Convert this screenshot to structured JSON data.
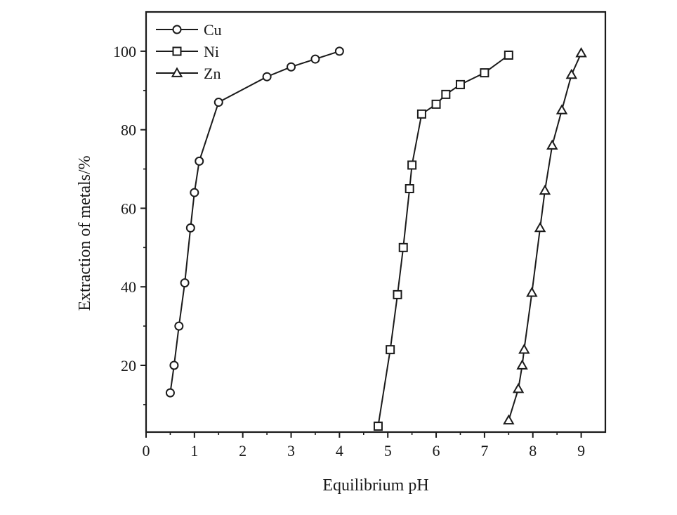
{
  "chart_data": {
    "type": "line",
    "xlabel": "Equilibrium pH",
    "ylabel": "Extraction of metals/%",
    "xlim": [
      0,
      9.5
    ],
    "ylim": [
      3,
      110
    ],
    "x_ticks": [
      0,
      1,
      2,
      3,
      4,
      5,
      6,
      7,
      8,
      9
    ],
    "y_ticks": [
      20,
      40,
      60,
      80,
      100
    ],
    "x_tick_labels": [
      "0",
      "1",
      "2",
      "3",
      "4",
      "5",
      "6",
      "7",
      "8",
      "9"
    ],
    "y_tick_labels": [
      "20",
      "40",
      "60",
      "80",
      "100"
    ],
    "grid": false,
    "legend_position": "top-left",
    "colors": {
      "line": "#1a1a1a",
      "marker_fill": "#ffffff"
    },
    "series": [
      {
        "name": "Cu",
        "marker": "circle",
        "x": [
          0.5,
          0.58,
          0.68,
          0.8,
          0.92,
          1.0,
          1.1,
          1.5,
          2.5,
          3.0,
          3.5,
          4.0
        ],
        "y": [
          13,
          20,
          30,
          41,
          55,
          64,
          72,
          87,
          93.5,
          96,
          98,
          100
        ]
      },
      {
        "name": "Ni",
        "marker": "square",
        "x": [
          4.8,
          5.05,
          5.2,
          5.32,
          5.45,
          5.5,
          5.7,
          6.0,
          6.2,
          6.5,
          7.0,
          7.5
        ],
        "y": [
          4.5,
          24,
          38,
          50,
          65,
          71,
          84,
          86.5,
          89,
          91.5,
          94.5,
          99
        ]
      },
      {
        "name": "Zn",
        "marker": "triangle",
        "x": [
          7.5,
          7.7,
          7.78,
          7.82,
          7.98,
          8.15,
          8.25,
          8.4,
          8.6,
          8.8,
          9.0
        ],
        "y": [
          6,
          14,
          20,
          24,
          38.5,
          55,
          64.5,
          76,
          85,
          94,
          99.5
        ]
      }
    ]
  }
}
